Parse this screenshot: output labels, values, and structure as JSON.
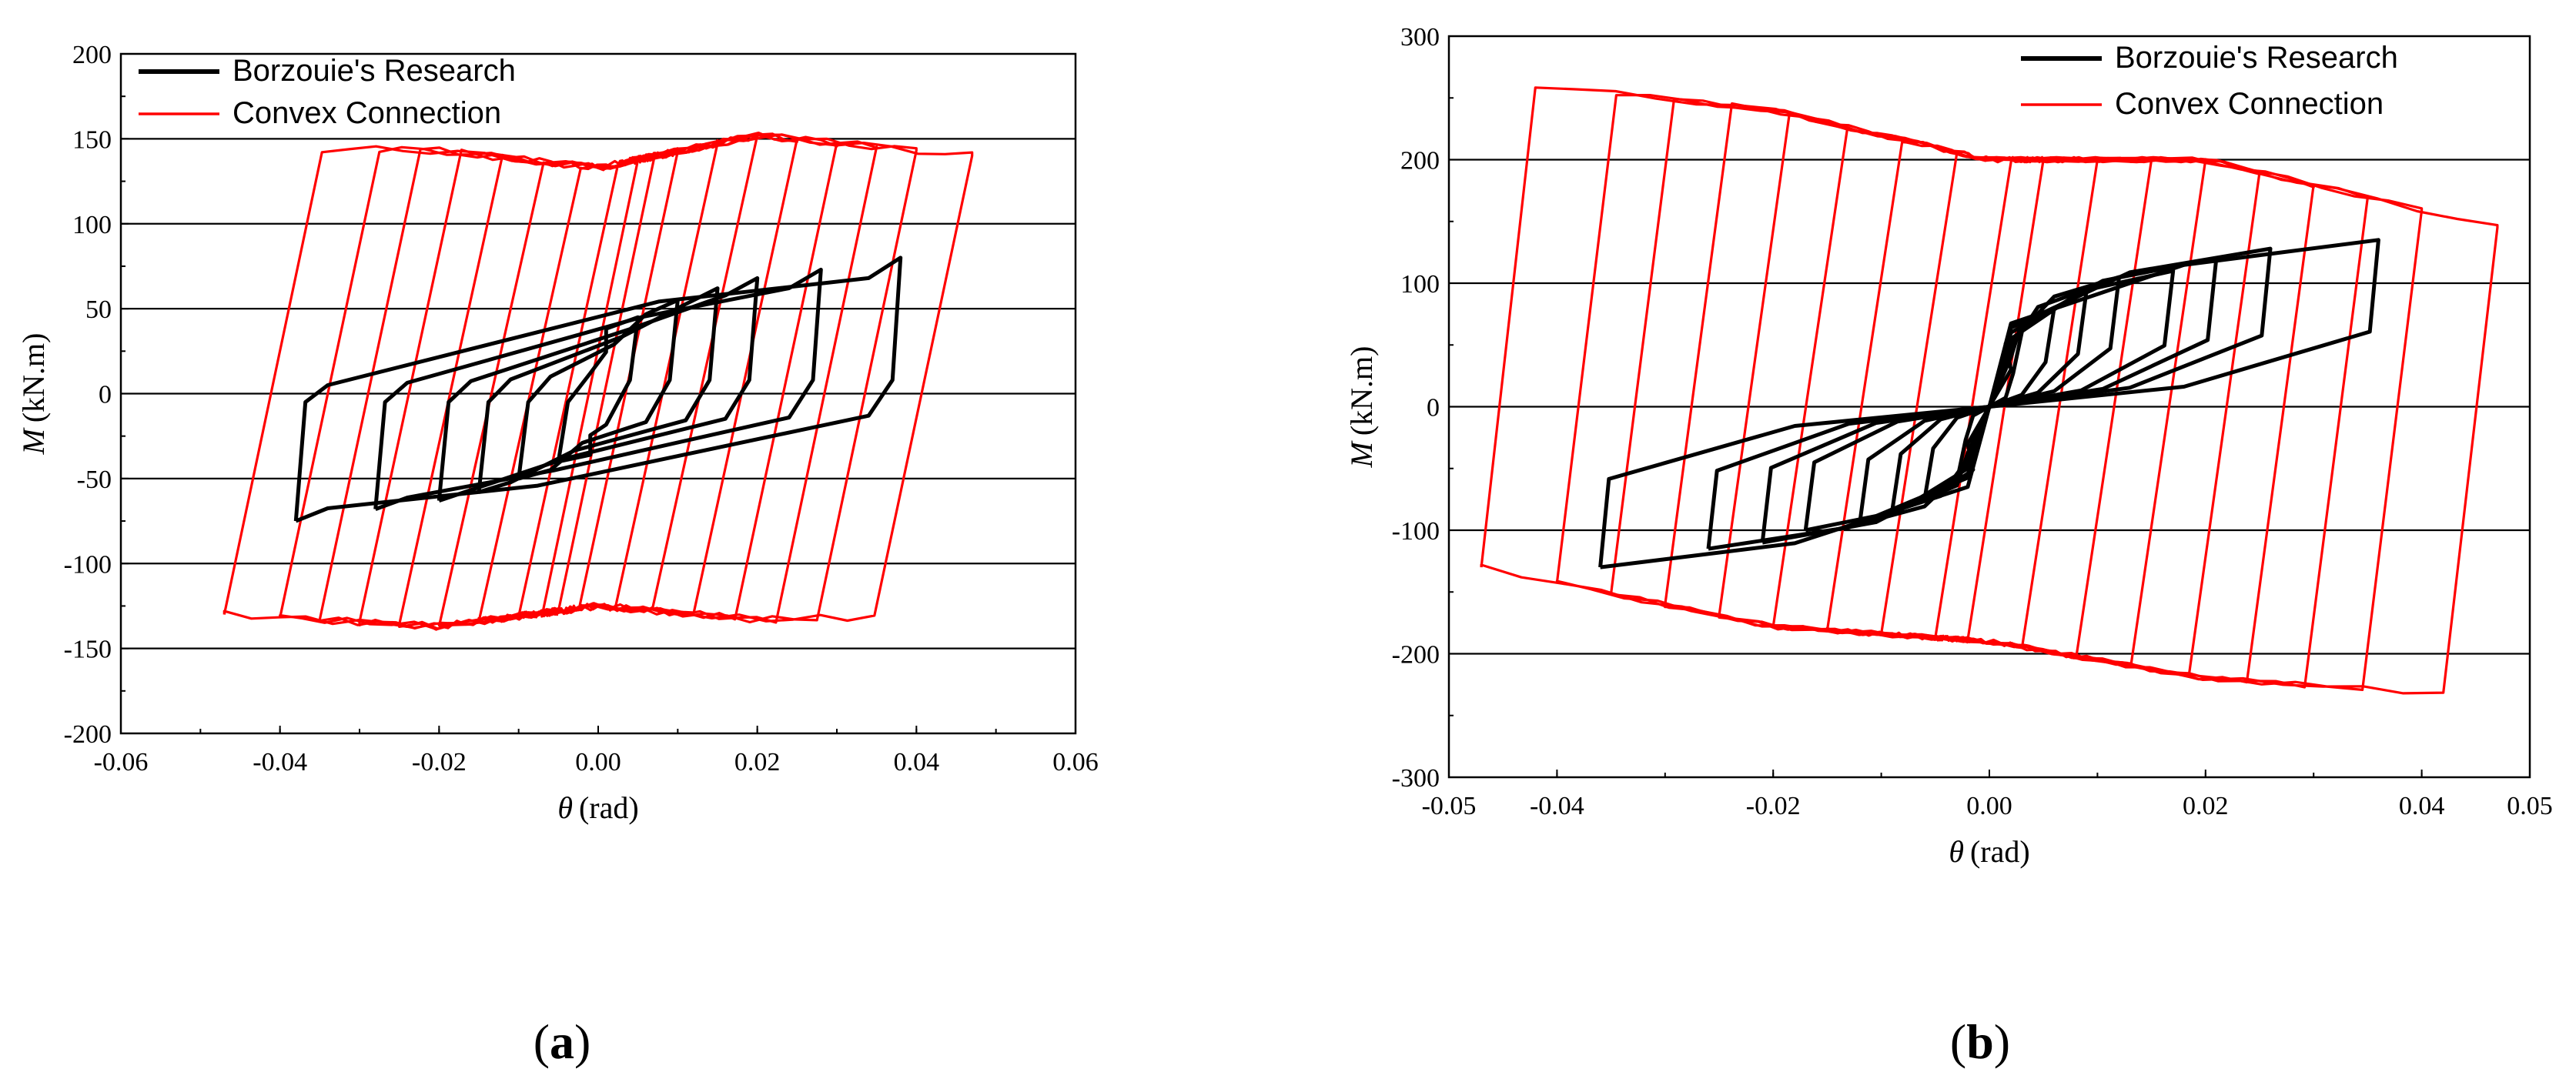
{
  "chart_data": [
    {
      "type": "line",
      "panel_label": "a",
      "xlabel": "θ",
      "xlabel_unit": "(rad)",
      "ylabel": "M",
      "ylabel_unit": "(kN.m)",
      "xlim": [
        -0.06,
        0.06
      ],
      "ylim": [
        -200,
        200
      ],
      "xticks": [
        -0.06,
        -0.04,
        -0.02,
        0.0,
        0.02,
        0.04,
        0.06
      ],
      "xtick_labels": [
        "-0.06",
        "-0.04",
        "-0.02",
        "0.00",
        "0.02",
        "0.04",
        "0.06"
      ],
      "yticks": [
        -200,
        -150,
        -100,
        -50,
        0,
        50,
        100,
        150,
        200
      ],
      "ytick_labels": [
        "-200",
        "-150",
        "-100",
        "-50",
        "0",
        "50",
        "100",
        "150",
        "200"
      ],
      "grid": "horizontal",
      "legend_position": "top-left",
      "series": [
        {
          "name": "Borzouie's Research",
          "color": "#000000",
          "kind": "bilinear-hysteresis",
          "amplitudes": [
            0.005,
            0.01,
            0.015,
            0.02,
            0.028,
            0.038
          ],
          "positive_peaks": [
            45,
            55,
            62,
            68,
            73,
            80
          ],
          "negative_peaks": [
            -40,
            -50,
            -58,
            -63,
            -68,
            -75
          ],
          "elastic_slope": 10000,
          "hardening_slope": 800
        },
        {
          "name": "Convex Connection",
          "color": "#ff0000",
          "kind": "parallelogram-hysteresis",
          "amplitudes": [
            0.005,
            0.01,
            0.015,
            0.02,
            0.025,
            0.03,
            0.035,
            0.04,
            0.047
          ],
          "upper_envelope": [
            [
              -0.047,
              145
            ],
            [
              -0.02,
              143
            ],
            [
              0.0,
              133
            ],
            [
              0.02,
              152
            ],
            [
              0.047,
              140
            ]
          ],
          "lower_envelope": [
            [
              -0.047,
              -130
            ],
            [
              -0.02,
              -137
            ],
            [
              0.0,
              -125
            ],
            [
              0.02,
              -133
            ],
            [
              0.047,
              -130
            ]
          ],
          "elastic_slope": 22000
        }
      ]
    },
    {
      "type": "line",
      "panel_label": "b",
      "xlabel": "θ",
      "xlabel_unit": "(rad)",
      "ylabel": "M",
      "ylabel_unit": "(kN.m)",
      "xlim": [
        -0.05,
        0.05
      ],
      "ylim": [
        -300,
        300
      ],
      "xticks": [
        -0.05,
        -0.04,
        -0.02,
        0.0,
        0.02,
        0.04,
        0.05
      ],
      "xtick_labels": [
        "-0.05",
        "-0.04",
        "-0.02",
        "0.00",
        "0.02",
        "0.04",
        "0.05"
      ],
      "yticks": [
        -300,
        -200,
        -100,
        0,
        100,
        200,
        300
      ],
      "ytick_labels": [
        "-300",
        "-200",
        "-100",
        "0",
        "100",
        "200",
        "300"
      ],
      "grid": "horizontal",
      "legend_position": "top-right",
      "series": [
        {
          "name": "Borzouie's Research",
          "color": "#000000",
          "kind": "pinched-hysteresis",
          "amplitudes": [
            0.003,
            0.006,
            0.009,
            0.012,
            0.017,
            0.021,
            0.026,
            0.036
          ],
          "positive_peaks": [
            60,
            80,
            95,
            105,
            110,
            120,
            128,
            135
          ],
          "negative_peaks": [
            -60,
            -75,
            -85,
            -95,
            -100,
            -110,
            -115,
            -130
          ]
        },
        {
          "name": "Convex Connection",
          "color": "#ff0000",
          "kind": "parallelogram-hysteresis",
          "amplitudes": [
            0.005,
            0.01,
            0.015,
            0.02,
            0.025,
            0.03,
            0.035,
            0.04,
            0.047
          ],
          "upper_envelope": [
            [
              -0.047,
              265
            ],
            [
              -0.02,
              240
            ],
            [
              0.0,
              200
            ],
            [
              0.02,
              200
            ],
            [
              0.047,
              145
            ]
          ],
          "lower_envelope": [
            [
              -0.047,
              -130
            ],
            [
              -0.02,
              -178
            ],
            [
              0.0,
              -190
            ],
            [
              0.02,
              -220
            ],
            [
              0.047,
              -235
            ]
          ],
          "elastic_slope": 55000
        }
      ]
    }
  ]
}
